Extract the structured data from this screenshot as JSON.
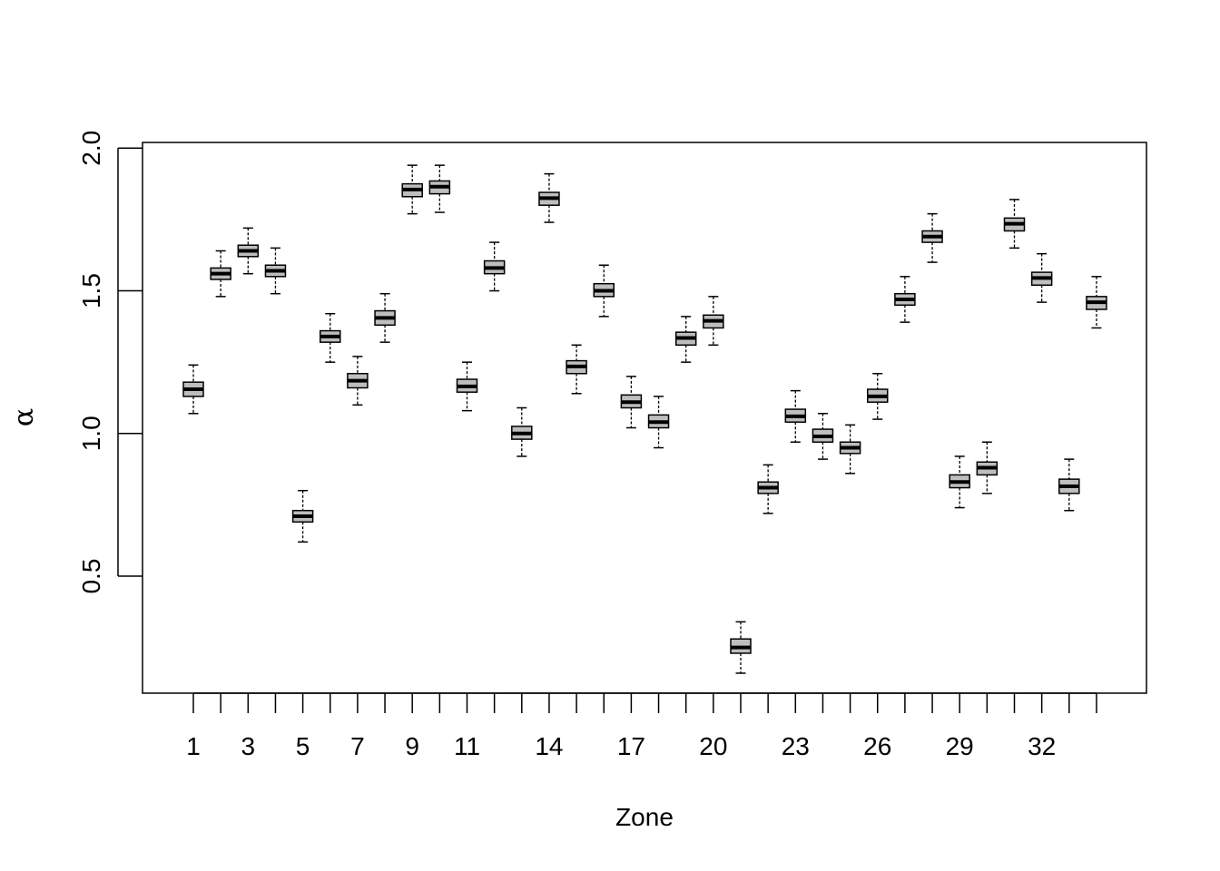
{
  "chart_data": {
    "type": "boxplot",
    "xlabel": "Zone",
    "ylabel": "α",
    "ylim": [
      0.09,
      2.02
    ],
    "y_ticks": [
      "0.5",
      "1.0",
      "1.5",
      "2.0"
    ],
    "y_tick_values": [
      0.5,
      1.0,
      1.5,
      2.0
    ],
    "categories": [
      "1",
      "2",
      "3",
      "4",
      "5",
      "6",
      "7",
      "8",
      "9",
      "10",
      "11",
      "12",
      "13",
      "14",
      "15",
      "16",
      "17",
      "18",
      "19",
      "20",
      "21",
      "22",
      "23",
      "24",
      "25",
      "26",
      "27",
      "28",
      "29",
      "30",
      "31",
      "32",
      "33",
      "34"
    ],
    "x_tick_labels": [
      "1",
      "3",
      "5",
      "7",
      "9",
      "11",
      "14",
      "17",
      "20",
      "23",
      "26",
      "29",
      "32"
    ],
    "boxes": [
      {
        "zone": 1,
        "min": 1.07,
        "q1": 1.13,
        "median": 1.155,
        "q3": 1.18,
        "max": 1.24
      },
      {
        "zone": 2,
        "min": 1.48,
        "q1": 1.54,
        "median": 1.56,
        "q3": 1.58,
        "max": 1.64
      },
      {
        "zone": 3,
        "min": 1.56,
        "q1": 1.62,
        "median": 1.64,
        "q3": 1.66,
        "max": 1.72
      },
      {
        "zone": 4,
        "min": 1.49,
        "q1": 1.55,
        "median": 1.57,
        "q3": 1.59,
        "max": 1.65
      },
      {
        "zone": 5,
        "min": 0.62,
        "q1": 0.69,
        "median": 0.71,
        "q3": 0.73,
        "max": 0.8
      },
      {
        "zone": 6,
        "min": 1.25,
        "q1": 1.32,
        "median": 1.34,
        "q3": 1.36,
        "max": 1.42
      },
      {
        "zone": 7,
        "min": 1.1,
        "q1": 1.16,
        "median": 1.185,
        "q3": 1.21,
        "max": 1.27
      },
      {
        "zone": 8,
        "min": 1.32,
        "q1": 1.38,
        "median": 1.405,
        "q3": 1.43,
        "max": 1.49
      },
      {
        "zone": 9,
        "min": 1.77,
        "q1": 1.83,
        "median": 1.855,
        "q3": 1.875,
        "max": 1.94
      },
      {
        "zone": 10,
        "min": 1.775,
        "q1": 1.84,
        "median": 1.865,
        "q3": 1.885,
        "max": 1.94
      },
      {
        "zone": 11,
        "min": 1.08,
        "q1": 1.145,
        "median": 1.165,
        "q3": 1.19,
        "max": 1.25
      },
      {
        "zone": 12,
        "min": 1.5,
        "q1": 1.56,
        "median": 1.58,
        "q3": 1.605,
        "max": 1.67
      },
      {
        "zone": 13,
        "min": 0.92,
        "q1": 0.98,
        "median": 1.0,
        "q3": 1.025,
        "max": 1.09
      },
      {
        "zone": 14,
        "min": 1.74,
        "q1": 1.8,
        "median": 1.825,
        "q3": 1.845,
        "max": 1.91
      },
      {
        "zone": 15,
        "min": 1.14,
        "q1": 1.21,
        "median": 1.235,
        "q3": 1.255,
        "max": 1.31
      },
      {
        "zone": 16,
        "min": 1.41,
        "q1": 1.48,
        "median": 1.5,
        "q3": 1.525,
        "max": 1.59
      },
      {
        "zone": 17,
        "min": 1.02,
        "q1": 1.09,
        "median": 1.11,
        "q3": 1.135,
        "max": 1.2
      },
      {
        "zone": 18,
        "min": 0.95,
        "q1": 1.02,
        "median": 1.04,
        "q3": 1.065,
        "max": 1.13
      },
      {
        "zone": 19,
        "min": 1.25,
        "q1": 1.31,
        "median": 1.335,
        "q3": 1.355,
        "max": 1.41
      },
      {
        "zone": 20,
        "min": 1.31,
        "q1": 1.37,
        "median": 1.395,
        "q3": 1.415,
        "max": 1.48
      },
      {
        "zone": 21,
        "min": 0.16,
        "q1": 0.23,
        "median": 0.25,
        "q3": 0.28,
        "max": 0.34
      },
      {
        "zone": 22,
        "min": 0.72,
        "q1": 0.79,
        "median": 0.81,
        "q3": 0.83,
        "max": 0.89
      },
      {
        "zone": 23,
        "min": 0.97,
        "q1": 1.04,
        "median": 1.06,
        "q3": 1.085,
        "max": 1.15
      },
      {
        "zone": 24,
        "min": 0.91,
        "q1": 0.97,
        "median": 0.99,
        "q3": 1.015,
        "max": 1.07
      },
      {
        "zone": 25,
        "min": 0.86,
        "q1": 0.93,
        "median": 0.95,
        "q3": 0.97,
        "max": 1.03
      },
      {
        "zone": 26,
        "min": 1.05,
        "q1": 1.11,
        "median": 1.13,
        "q3": 1.155,
        "max": 1.21
      },
      {
        "zone": 27,
        "min": 1.39,
        "q1": 1.45,
        "median": 1.47,
        "q3": 1.49,
        "max": 1.55
      },
      {
        "zone": 28,
        "min": 1.6,
        "q1": 1.67,
        "median": 1.69,
        "q3": 1.71,
        "max": 1.77
      },
      {
        "zone": 29,
        "min": 0.74,
        "q1": 0.81,
        "median": 0.83,
        "q3": 0.855,
        "max": 0.92
      },
      {
        "zone": 30,
        "min": 0.79,
        "q1": 0.855,
        "median": 0.88,
        "q3": 0.9,
        "max": 0.97
      },
      {
        "zone": 31,
        "min": 1.65,
        "q1": 1.71,
        "median": 1.735,
        "q3": 1.755,
        "max": 1.82
      },
      {
        "zone": 32,
        "min": 1.46,
        "q1": 1.52,
        "median": 1.545,
        "q3": 1.565,
        "max": 1.63
      },
      {
        "zone": 33,
        "min": 0.73,
        "q1": 0.79,
        "median": 0.815,
        "q3": 0.84,
        "max": 0.91
      },
      {
        "zone": 34,
        "min": 1.37,
        "q1": 1.435,
        "median": 1.46,
        "q3": 1.48,
        "max": 1.55
      }
    ],
    "grid": false,
    "legend": "none",
    "box_fill": "#bebebe",
    "stroke": "#000000"
  }
}
